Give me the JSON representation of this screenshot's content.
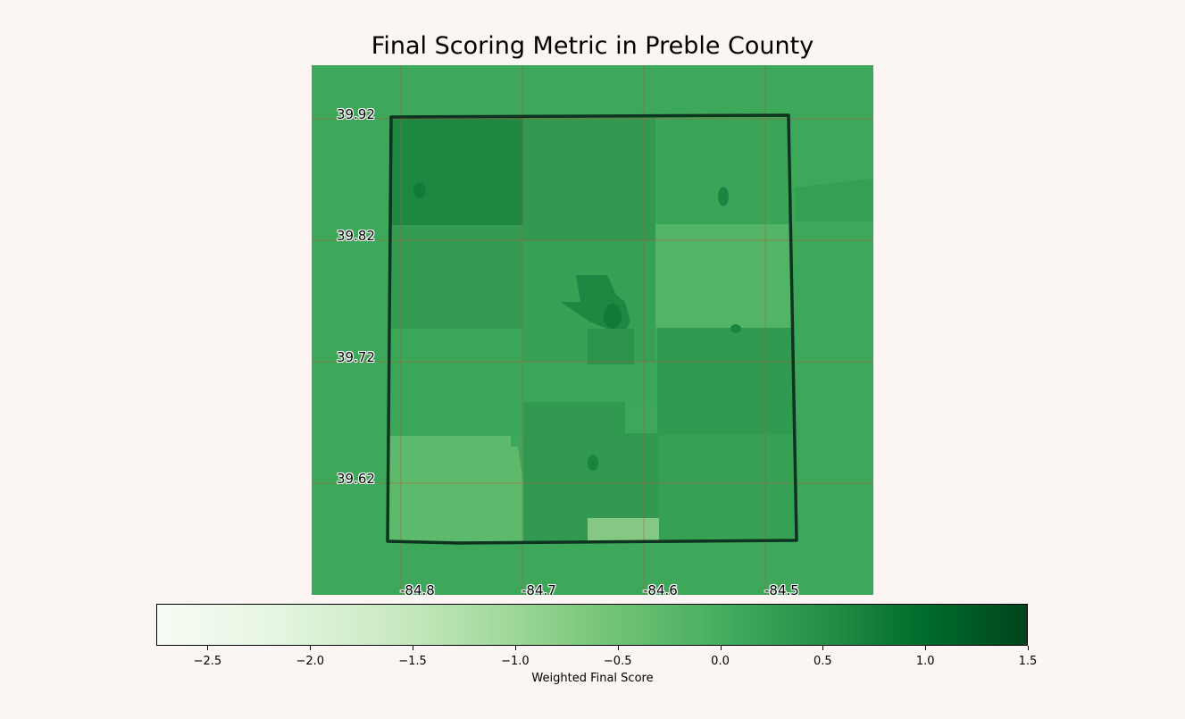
{
  "title": "Final Scoring Metric in Preble County",
  "chart_data": {
    "type": "heatmap",
    "region": "Preble County",
    "title": "Final Scoring Metric in Preble County",
    "lat_ticks": [
      "39.92",
      "39.82",
      "39.72",
      "39.62"
    ],
    "lon_ticks": [
      "-84.8",
      "-84.7",
      "-84.6",
      "-84.5"
    ],
    "colorbar": {
      "label": "Weighted Final Score",
      "min": -2.75,
      "max": 1.5,
      "ticks": [
        "−2.5",
        "−2.0",
        "−1.5",
        "−1.0",
        "−0.5",
        "0.0",
        "0.5",
        "1.0",
        "1.5"
      ],
      "tick_values": [
        -2.5,
        -2.0,
        -1.5,
        -1.0,
        -0.5,
        0.0,
        0.5,
        1.0,
        1.5
      ],
      "colormap": "Greens"
    },
    "grid": true,
    "colors": {
      "background": "#3ea85a",
      "county_outline": "#0e3320",
      "grid_lines": "#b25a3c"
    }
  }
}
